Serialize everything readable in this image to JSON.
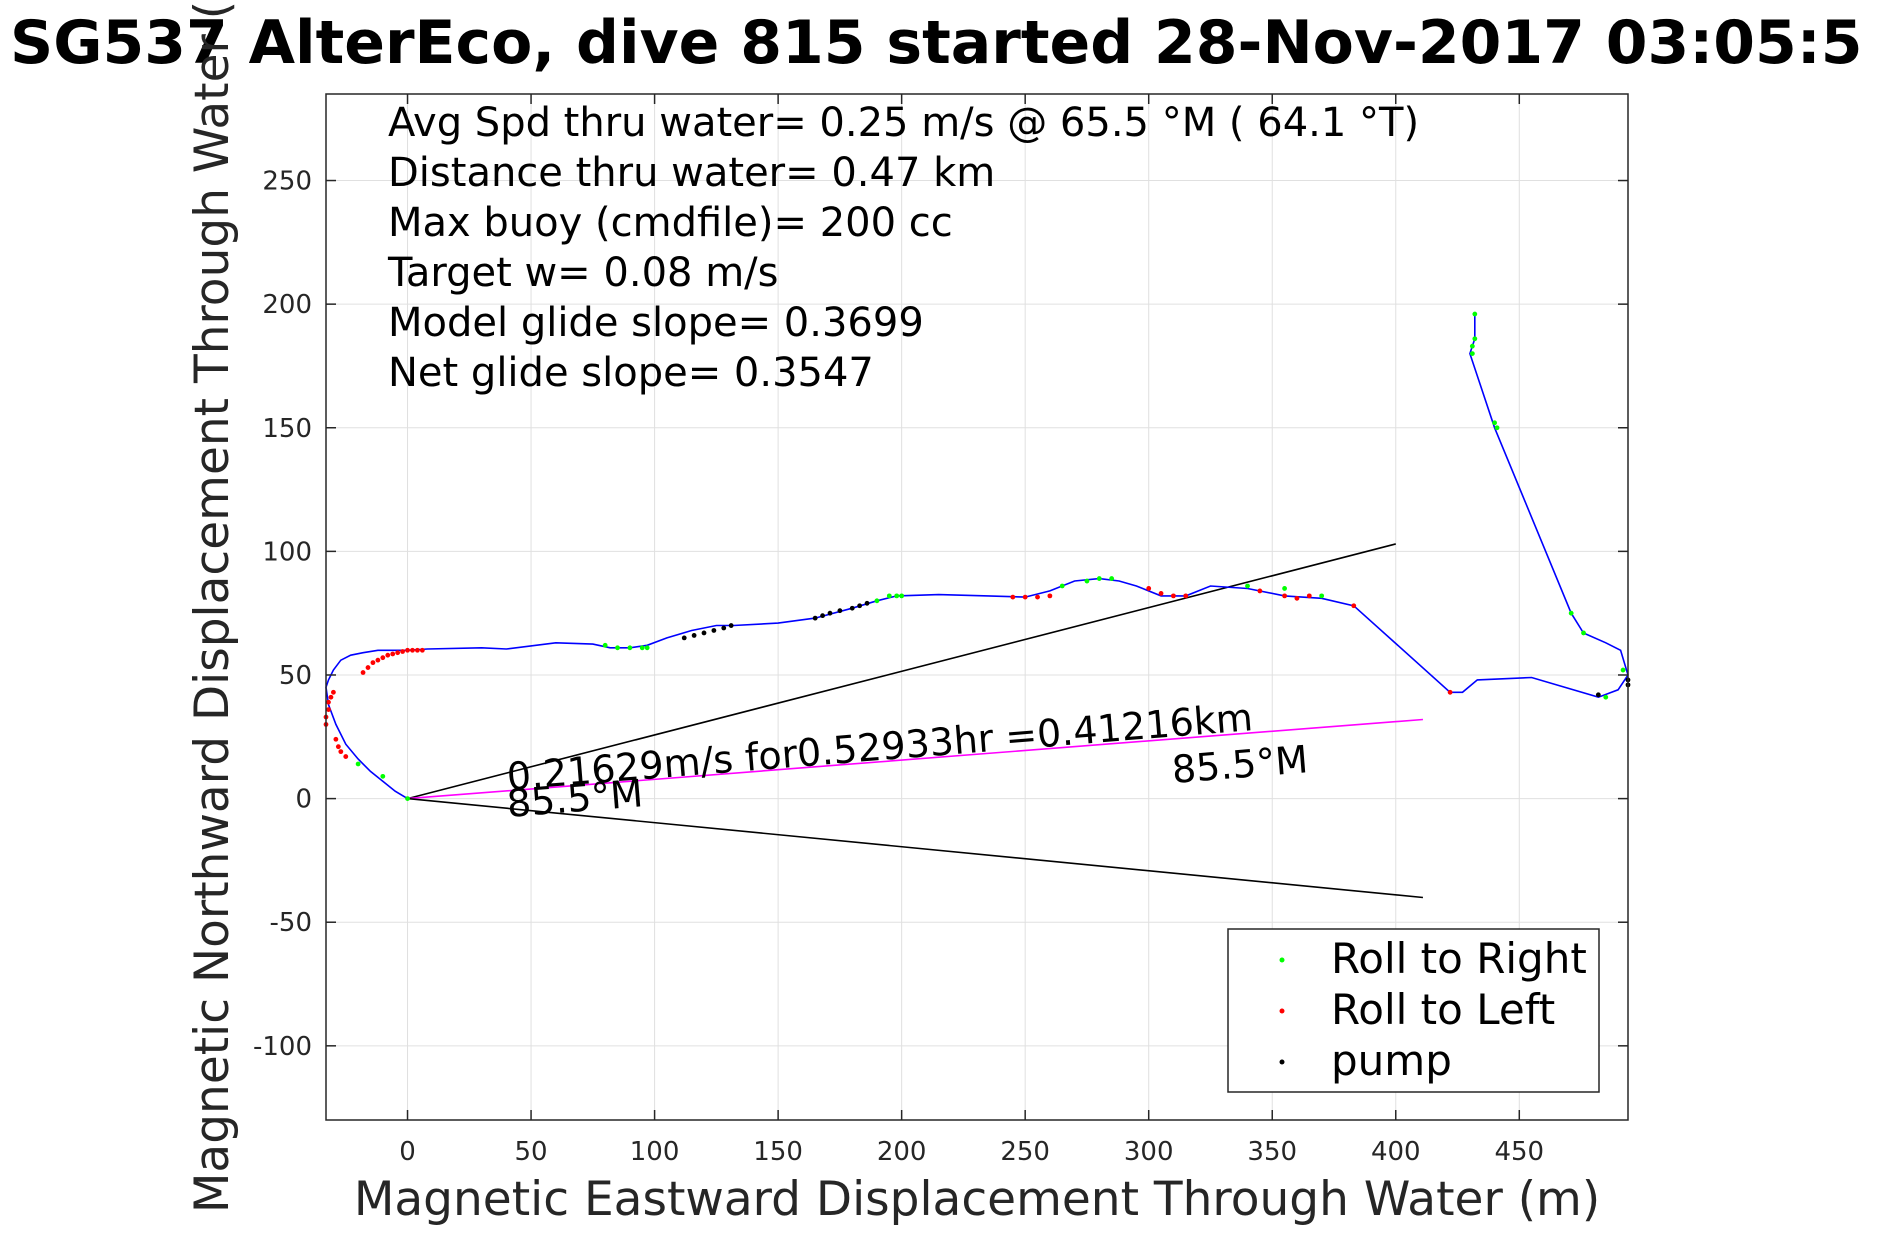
{
  "chart_data": {
    "type": "line",
    "title": "SG537 AlterEco, dive 815 started 28-Nov-2017 03:05:5",
    "xlabel": "Magnetic Eastward Displacement Through Water (m)",
    "ylabel": "Magnetic Northward Displacement Through Water (",
    "xlim": [
      -33,
      494
    ],
    "ylim": [
      -130,
      285
    ],
    "xticks": [
      0,
      50,
      100,
      150,
      200,
      250,
      300,
      350,
      400,
      450
    ],
    "yticks": [
      -100,
      -50,
      0,
      50,
      100,
      150,
      200,
      250
    ],
    "grid": true,
    "info_lines": [
      "Avg Spd thru water=  0.25 m/s @  65.5 °M ( 64.1 °T)",
      "Distance thru water=  0.47 km",
      "Max buoy (cmdfile)= 200 cc",
      "Target w= 0.08 m/s",
      "Model glide slope= 0.3699",
      "Net glide slope= 0.3547"
    ],
    "annotations": {
      "speed_line": "0.21629m/s for0.52933hr =0.41216km",
      "heading_start": "85.5°M",
      "heading_end": "85.5°M"
    },
    "track": {
      "color": "#0000ff",
      "x": [
        0,
        -5,
        -10,
        -15,
        -20,
        -25,
        -29,
        -32,
        -33,
        -32,
        -30,
        -27,
        -23,
        -18,
        -12,
        -6,
        0,
        8,
        30,
        40,
        60,
        75,
        82,
        90,
        97,
        105,
        115,
        125,
        132,
        150,
        165,
        180,
        190,
        198,
        215,
        235,
        250,
        260,
        270,
        280,
        288,
        295,
        305,
        315,
        325,
        340,
        355,
        370,
        383,
        422,
        427,
        433,
        455,
        482,
        490,
        494,
        491,
        485,
        476,
        471,
        440,
        430,
        432,
        432
      ],
      "y": [
        0,
        3,
        7,
        11,
        16,
        22,
        30,
        38,
        45,
        48,
        52,
        56,
        58,
        59,
        60,
        60,
        60,
        60.5,
        61,
        60.5,
        63,
        62.5,
        61,
        61,
        62,
        65,
        68,
        70,
        70,
        71,
        73,
        77,
        80,
        82,
        82.5,
        82,
        81.5,
        84,
        88,
        89,
        88,
        86,
        82,
        82,
        86,
        85,
        82,
        81,
        78,
        43,
        43,
        48,
        49,
        41,
        44,
        50,
        60,
        63,
        67,
        75,
        150,
        180,
        186,
        196
      ]
    },
    "series": [
      {
        "name": "Roll to Right",
        "color": "#00ff00",
        "x": [
          -20,
          -10,
          0,
          80,
          85,
          90,
          95,
          97,
          190,
          195,
          198,
          200,
          265,
          275,
          280,
          285,
          340,
          355,
          370,
          440,
          441,
          431,
          431,
          432,
          432,
          476,
          471,
          485,
          492
        ],
        "y": [
          14,
          9,
          0,
          62,
          61,
          61,
          61,
          61,
          80,
          82,
          82,
          82,
          86,
          88,
          89,
          89,
          86,
          85,
          82,
          152,
          150,
          180,
          183,
          186,
          196,
          67,
          75,
          41,
          52
        ]
      },
      {
        "name": "Roll to Left",
        "color": "#ff0000",
        "x": [
          -33,
          -33,
          -32,
          -32,
          -31,
          -30,
          -29,
          -28,
          -27,
          -25,
          -18,
          -16,
          -14,
          -12,
          -10,
          -8,
          -6,
          -4,
          -2,
          0,
          2,
          4,
          6,
          245,
          250,
          255,
          260,
          300,
          305,
          310,
          315,
          345,
          355,
          360,
          365,
          383,
          422
        ],
        "y": [
          30,
          33,
          36,
          39,
          41,
          43,
          24,
          21,
          19,
          17,
          51,
          53,
          55,
          56,
          57,
          58,
          58.5,
          59,
          59.5,
          60,
          60,
          60,
          60,
          81.5,
          81.5,
          81.5,
          82,
          85,
          83,
          82,
          82,
          84,
          82,
          81,
          82,
          78,
          43
        ]
      },
      {
        "name": "pump",
        "color": "#000000",
        "x": [
          112,
          116,
          120,
          124,
          128,
          131,
          165,
          168,
          171,
          175,
          180,
          183,
          186,
          482,
          494,
          494
        ],
        "y": [
          65,
          66,
          67,
          68,
          69,
          70,
          73,
          74,
          75,
          76,
          77,
          78,
          79,
          42,
          46,
          48
        ]
      }
    ],
    "reference_lines": [
      {
        "color": "#000000",
        "x": [
          0,
          400
        ],
        "y": [
          0,
          103
        ]
      },
      {
        "color": "#ff00ff",
        "x": [
          0,
          411
        ],
        "y": [
          0,
          32
        ]
      },
      {
        "color": "#000000",
        "x": [
          0,
          411
        ],
        "y": [
          0,
          -40
        ]
      }
    ],
    "legend_position": "bottom-right"
  }
}
